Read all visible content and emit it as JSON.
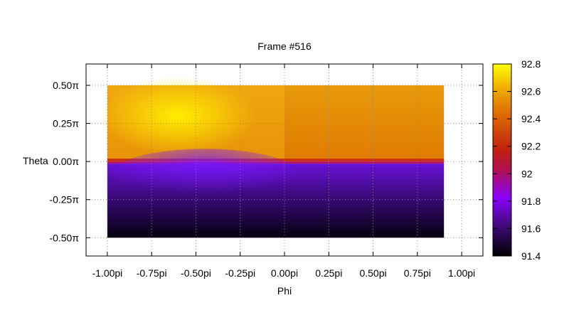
{
  "chart_data": {
    "type": "heatmap",
    "title": "Frame #516",
    "xlabel": "Phi",
    "ylabel": "Theta",
    "x_tick_labels": [
      "-1.00pi",
      "-0.75pi",
      "-0.50pi",
      "-0.25pi",
      "0.00pi",
      "0.25pi",
      "0.50pi",
      "0.75pi",
      "1.00pi"
    ],
    "x_tick_values": [
      -1.0,
      -0.75,
      -0.5,
      -0.25,
      0.0,
      0.25,
      0.5,
      0.75,
      1.0
    ],
    "y_tick_labels": [
      "0.50π",
      "0.25π",
      "0.00π",
      "-0.25π",
      "-0.50π"
    ],
    "y_tick_values": [
      0.5,
      0.25,
      0.0,
      -0.25,
      -0.5
    ],
    "xlim": [
      -1.12,
      1.12
    ],
    "ylim": [
      -0.62,
      0.64
    ],
    "data_x_extent": [
      -1.0,
      0.9
    ],
    "data_y_extent": [
      -0.5,
      0.5
    ],
    "grid": true,
    "colorbar": {
      "range": [
        91.4,
        92.8
      ],
      "tick_values": [
        91.4,
        91.6,
        91.8,
        92.0,
        92.2,
        92.4,
        92.6,
        92.8
      ],
      "tick_labels": [
        "91.4",
        "91.6",
        "91.8",
        "92",
        "92.2",
        "92.4",
        "92.6",
        "92.8"
      ],
      "palette": [
        "#000000",
        "#4a0a8a",
        "#8a00ff",
        "#c01820",
        "#e05a00",
        "#f0a000",
        "#ffff00"
      ]
    },
    "z_description_values": {
      "upper_half_max": 92.78,
      "upper_half_mean": 92.55,
      "equator_band": 92.2,
      "lower_half_top": 91.7,
      "lower_half_bottom": 91.4
    }
  }
}
